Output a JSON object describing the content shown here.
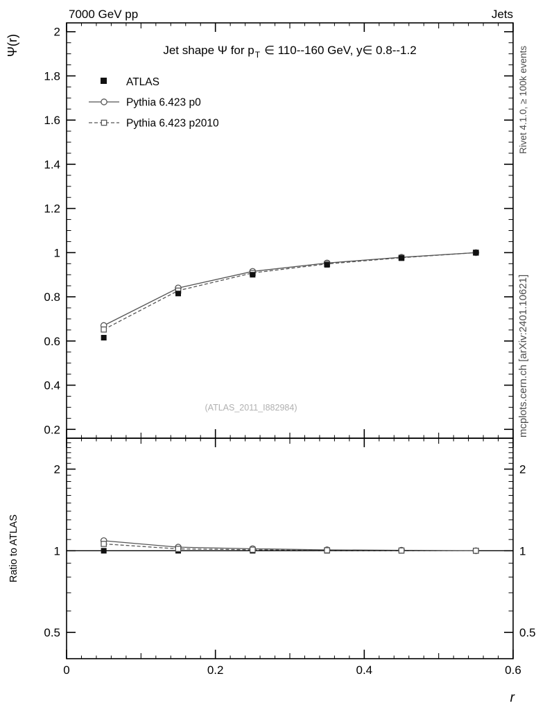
{
  "header": {
    "beam": "7000 GeV pp",
    "analysis": "Jets"
  },
  "main_panel": {
    "ylabel": "Ψ(r)",
    "title_pre": "Jet shape Ψ for p",
    "title_sub": "T",
    "title_post": "∈ 110--160 GeV, y∈ 0.8--1.2",
    "watermark": "(ATLAS_2011_I882984)"
  },
  "ratio_panel": {
    "ylabel": "Ratio to ATLAS",
    "baseline_value": 1
  },
  "xaxis": {
    "label": "r"
  },
  "right_margin": {
    "top_text": "Rivet 4.1.0, ≥ 100k events",
    "bottom_text": "mcplots.cern.ch [arXiv:2401.10621]"
  },
  "chart_data": {
    "type": "line",
    "title": "Jet shape Ψ for pT ∈ 110--160 GeV, y ∈ 0.8--1.2",
    "xlabel": "r",
    "ylabel": "Ψ(r)",
    "ratio_ylabel": "Ratio to ATLAS",
    "x": [
      0.05,
      0.15,
      0.25,
      0.35,
      0.45,
      0.55
    ],
    "series": [
      {
        "name": "ATLAS",
        "role": "reference-data",
        "marker": "filled-square",
        "color": "#111111",
        "values": [
          0.615,
          0.815,
          0.9,
          0.945,
          0.975,
          1.0
        ],
        "errors": [
          0.012,
          0.009,
          0.007,
          0.005,
          0.004,
          0.003
        ],
        "ratio_to_atlas": [
          1.0,
          1.0,
          1.0,
          1.0,
          1.0,
          1.0
        ]
      },
      {
        "name": "Pythia 6.423 p0",
        "role": "mc",
        "marker": "open-circle",
        "line_style": "solid",
        "color": "#555555",
        "values": [
          0.67,
          0.84,
          0.915,
          0.953,
          0.979,
          1.0
        ],
        "ratio_to_atlas": [
          1.089,
          1.031,
          1.017,
          1.008,
          1.004,
          1.0
        ]
      },
      {
        "name": "Pythia 6.423 p2010",
        "role": "mc",
        "marker": "open-square",
        "line_style": "dashed",
        "color": "#555555",
        "values": [
          0.652,
          0.828,
          0.908,
          0.949,
          0.977,
          1.0
        ],
        "ratio_to_atlas": [
          1.06,
          1.016,
          1.009,
          1.004,
          1.002,
          1.0
        ]
      }
    ],
    "axes": {
      "xlim": [
        0,
        0.6
      ],
      "xticks_major": [
        0,
        0.2,
        0.4,
        0.6
      ],
      "main_ylim": [
        0.16,
        2.04
      ],
      "main_yticks_major": [
        0.2,
        0.4,
        0.6,
        0.8,
        1,
        1.2,
        1.4,
        1.6,
        1.8,
        2
      ],
      "ratio_ylim": [
        0.4,
        2.6
      ],
      "ratio_scale": "log",
      "ratio_yticks_major": [
        0.5,
        1,
        2
      ],
      "grid": false,
      "legend_position": "top-left-inside"
    }
  }
}
